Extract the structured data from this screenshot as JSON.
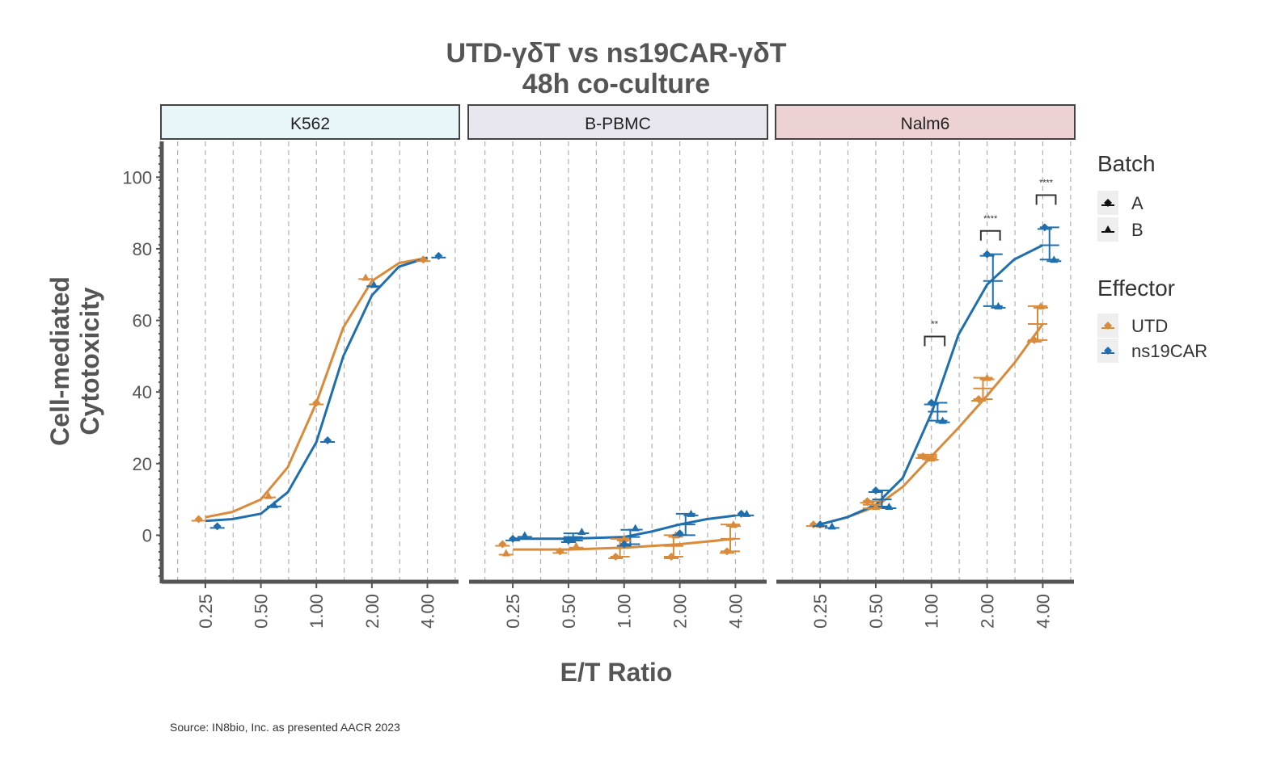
{
  "chart_data": {
    "type": "scatter",
    "title": "UTD-γδT vs ns19CAR-γδT",
    "subtitle": "48h co-culture",
    "xlabel": "E/T Ratio",
    "ylabel_line1": "Cell-mediated",
    "ylabel_line2": "Cytotoxicity",
    "x_scale": "log2",
    "x_ticks": [
      0.25,
      0.5,
      1,
      2,
      4
    ],
    "x_tick_labels": [
      "0.25",
      "0.50",
      "1.00",
      "2.00",
      "4.00"
    ],
    "y_ticks": [
      0,
      20,
      40,
      60,
      80,
      100
    ],
    "y_tick_labels": [
      "0",
      "20",
      "40",
      "60",
      "80",
      "100"
    ],
    "ylim": [
      -13,
      110
    ],
    "colors": {
      "UTD": "#D98A3A",
      "ns19CAR": "#1F6FAE",
      "grid": "#B0B0B0",
      "axis": "#555555"
    },
    "legend": {
      "batch_title": "Batch",
      "batch_items": [
        "A",
        "B"
      ],
      "effector_title": "Effector",
      "effector_items": [
        "UTD",
        "ns19CAR"
      ]
    },
    "panels": [
      {
        "name": "K562",
        "strip_color": "#E8F6FA",
        "curves": [
          {
            "effector": "UTD",
            "x": [
              0.25,
              0.35,
              0.5,
              0.7,
              1,
              1.4,
              2,
              2.8,
              4
            ],
            "y": [
              5,
              6.5,
              10,
              19,
              37,
              58,
              71,
              76,
              77.5
            ]
          },
          {
            "effector": "ns19CAR",
            "x": [
              0.25,
              0.35,
              0.5,
              0.7,
              1,
              1.4,
              2,
              2.8,
              4
            ],
            "y": [
              4,
              4.5,
              6,
              12,
              26,
              50,
              67,
              75,
              77.5
            ]
          }
        ],
        "points": [
          {
            "effector": "UTD",
            "batch": "A",
            "x": 0.23,
            "y": 4.5
          },
          {
            "effector": "UTD",
            "batch": "B",
            "x": 0.55,
            "y": 11
          },
          {
            "effector": "UTD",
            "batch": "A",
            "x": 1.0,
            "y": 37
          },
          {
            "effector": "UTD",
            "batch": "B",
            "x": 1.85,
            "y": 72
          },
          {
            "effector": "UTD",
            "batch": "A",
            "x": 3.8,
            "y": 77
          },
          {
            "effector": "ns19CAR",
            "batch": "A",
            "x": 0.29,
            "y": 2.5
          },
          {
            "effector": "ns19CAR",
            "batch": "B",
            "x": 0.59,
            "y": 8.5
          },
          {
            "effector": "ns19CAR",
            "batch": "A",
            "x": 1.15,
            "y": 26.5
          },
          {
            "effector": "ns19CAR",
            "batch": "B",
            "x": 2.05,
            "y": 70
          },
          {
            "effector": "ns19CAR",
            "batch": "A",
            "x": 4.6,
            "y": 78
          }
        ],
        "errorbars": [],
        "significance": []
      },
      {
        "name": "B-PBMC",
        "strip_color": "#E8E6EE",
        "curves": [
          {
            "effector": "UTD",
            "x": [
              0.25,
              0.5,
              1,
              2,
              4
            ],
            "y": [
              -4,
              -4,
              -3.5,
              -2.5,
              -1
            ]
          },
          {
            "effector": "ns19CAR",
            "x": [
              0.25,
              0.5,
              1,
              1.4,
              2,
              2.8,
              4
            ],
            "y": [
              -1,
              -1,
              -0.5,
              1,
              3,
              4.5,
              5.5
            ]
          }
        ],
        "points": [
          {
            "effector": "UTD",
            "batch": "A",
            "x": 0.22,
            "y": -2.5
          },
          {
            "effector": "UTD",
            "batch": "B",
            "x": 0.23,
            "y": -5
          },
          {
            "effector": "UTD",
            "batch": "A",
            "x": 0.45,
            "y": -4.5
          },
          {
            "effector": "UTD",
            "batch": "B",
            "x": 0.55,
            "y": -3
          },
          {
            "effector": "UTD",
            "batch": "A",
            "x": 0.9,
            "y": -6
          },
          {
            "effector": "UTD",
            "batch": "B",
            "x": 1.0,
            "y": -1
          },
          {
            "effector": "UTD",
            "batch": "A",
            "x": 1.8,
            "y": -6
          },
          {
            "effector": "UTD",
            "batch": "B",
            "x": 1.9,
            "y": 0
          },
          {
            "effector": "UTD",
            "batch": "A",
            "x": 3.6,
            "y": -4.5
          },
          {
            "effector": "UTD",
            "batch": "B",
            "x": 3.9,
            "y": 3
          },
          {
            "effector": "ns19CAR",
            "batch": "A",
            "x": 0.25,
            "y": -1
          },
          {
            "effector": "ns19CAR",
            "batch": "B",
            "x": 0.29,
            "y": 0
          },
          {
            "effector": "ns19CAR",
            "batch": "A",
            "x": 0.5,
            "y": -1.5
          },
          {
            "effector": "ns19CAR",
            "batch": "B",
            "x": 0.59,
            "y": 1
          },
          {
            "effector": "ns19CAR",
            "batch": "A",
            "x": 1.0,
            "y": -2.5
          },
          {
            "effector": "ns19CAR",
            "batch": "B",
            "x": 1.15,
            "y": 2
          },
          {
            "effector": "ns19CAR",
            "batch": "A",
            "x": 2.0,
            "y": 0.5
          },
          {
            "effector": "ns19CAR",
            "batch": "B",
            "x": 2.3,
            "y": 6
          },
          {
            "effector": "ns19CAR",
            "batch": "A",
            "x": 4.3,
            "y": 6
          },
          {
            "effector": "ns19CAR",
            "batch": "B",
            "x": 4.6,
            "y": 6
          }
        ],
        "errorbars": [
          {
            "effector": "ns19CAR",
            "x": 0.53,
            "mean": -0.5,
            "low": -1.5,
            "high": 0.5
          },
          {
            "effector": "UTD",
            "x": 0.95,
            "mean": -3.5,
            "low": -6,
            "high": -1
          },
          {
            "effector": "ns19CAR",
            "x": 1.08,
            "mean": -0.5,
            "low": -2.5,
            "high": 1.5
          },
          {
            "effector": "UTD",
            "x": 1.85,
            "mean": -3,
            "low": -6,
            "high": 0
          },
          {
            "effector": "ns19CAR",
            "x": 2.15,
            "mean": 3,
            "low": 0,
            "high": 6
          },
          {
            "effector": "UTD",
            "x": 3.75,
            "mean": -1,
            "low": -4.5,
            "high": 3
          }
        ],
        "significance": []
      },
      {
        "name": "Nalm6",
        "strip_color": "#EDD2D4",
        "curves": [
          {
            "effector": "UTD",
            "x": [
              0.25,
              0.35,
              0.5,
              0.7,
              1,
              1.4,
              2,
              2.8,
              4
            ],
            "y": [
              3,
              5,
              8,
              13.5,
              22,
              30,
              39,
              48,
              59
            ]
          },
          {
            "effector": "ns19CAR",
            "x": [
              0.25,
              0.35,
              0.5,
              0.7,
              1,
              1.4,
              2,
              2.8,
              4
            ],
            "y": [
              3,
              5,
              8.5,
              16,
              34,
              56,
              70,
              77,
              81
            ]
          }
        ],
        "points": [
          {
            "effector": "UTD",
            "batch": "A",
            "x": 0.23,
            "y": 3
          },
          {
            "effector": "UTD",
            "batch": "B",
            "x": 0.25,
            "y": 3
          },
          {
            "effector": "UTD",
            "batch": "A",
            "x": 0.45,
            "y": 9.5
          },
          {
            "effector": "UTD",
            "batch": "B",
            "x": 0.5,
            "y": 8
          },
          {
            "effector": "UTD",
            "batch": "A",
            "x": 0.9,
            "y": 22
          },
          {
            "effector": "UTD",
            "batch": "B",
            "x": 1.0,
            "y": 21.5
          },
          {
            "effector": "UTD",
            "batch": "A",
            "x": 1.8,
            "y": 38
          },
          {
            "effector": "UTD",
            "batch": "B",
            "x": 2.0,
            "y": 44
          },
          {
            "effector": "UTD",
            "batch": "A",
            "x": 3.6,
            "y": 54.5
          },
          {
            "effector": "UTD",
            "batch": "B",
            "x": 3.9,
            "y": 64
          },
          {
            "effector": "ns19CAR",
            "batch": "A",
            "x": 0.25,
            "y": 3
          },
          {
            "effector": "ns19CAR",
            "batch": "B",
            "x": 0.29,
            "y": 2.5
          },
          {
            "effector": "ns19CAR",
            "batch": "A",
            "x": 0.5,
            "y": 12.5
          },
          {
            "effector": "ns19CAR",
            "batch": "B",
            "x": 0.59,
            "y": 8
          },
          {
            "effector": "ns19CAR",
            "batch": "A",
            "x": 1.0,
            "y": 37
          },
          {
            "effector": "ns19CAR",
            "batch": "B",
            "x": 1.15,
            "y": 32
          },
          {
            "effector": "ns19CAR",
            "batch": "A",
            "x": 2.0,
            "y": 78.5
          },
          {
            "effector": "ns19CAR",
            "batch": "B",
            "x": 2.3,
            "y": 64
          },
          {
            "effector": "ns19CAR",
            "batch": "A",
            "x": 4.1,
            "y": 86
          },
          {
            "effector": "ns19CAR",
            "batch": "B",
            "x": 4.6,
            "y": 77
          }
        ],
        "errorbars": [
          {
            "effector": "UTD",
            "x": 0.48,
            "mean": 8.5,
            "low": 7.5,
            "high": 9.5
          },
          {
            "effector": "ns19CAR",
            "x": 0.54,
            "mean": 10,
            "low": 8,
            "high": 12.5
          },
          {
            "effector": "UTD",
            "x": 0.95,
            "mean": 22,
            "low": 21.5,
            "high": 22.5
          },
          {
            "effector": "ns19CAR",
            "x": 1.08,
            "mean": 34.5,
            "low": 32,
            "high": 37
          },
          {
            "effector": "UTD",
            "x": 1.9,
            "mean": 41,
            "low": 38,
            "high": 44
          },
          {
            "effector": "ns19CAR",
            "x": 2.15,
            "mean": 71,
            "low": 64,
            "high": 78.5
          },
          {
            "effector": "UTD",
            "x": 3.75,
            "mean": 59,
            "low": 54.5,
            "high": 64
          },
          {
            "effector": "ns19CAR",
            "x": 4.35,
            "mean": 81,
            "low": 77,
            "high": 86
          }
        ],
        "significance": [
          {
            "x1": 0.92,
            "x2": 1.18,
            "y": 55.5,
            "label": "**"
          },
          {
            "x1": 1.85,
            "x2": 2.35,
            "y": 85,
            "label": "****"
          },
          {
            "x1": 3.7,
            "x2": 4.7,
            "y": 95,
            "label": "****"
          }
        ]
      }
    ]
  },
  "footer": {
    "source": "Source: IN8bio, Inc. as presented AACR 2023"
  }
}
